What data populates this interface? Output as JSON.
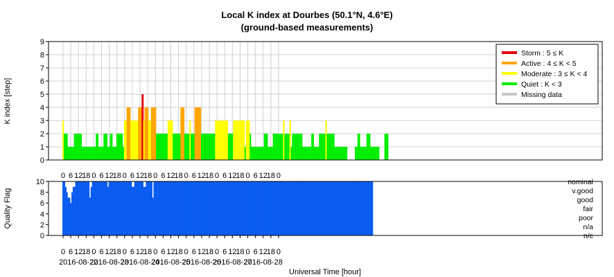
{
  "chart_data": [
    {
      "type": "bar",
      "title": "Local K index at Dourbes (50.1°N, 4.6°E)",
      "subtitle": "(ground-based measurements)",
      "ylabel": "K index [step]",
      "ylim": [
        0,
        9
      ],
      "yticks": [
        "0",
        "1",
        "2",
        "3",
        "4",
        "5",
        "6",
        "7",
        "8",
        "9"
      ],
      "grid": true,
      "x_interval_hours": 1,
      "legend": {
        "placement": "top-right",
        "entries": [
          {
            "label": "Storm : 5 ≤ K",
            "color": "#e8000b"
          },
          {
            "label": "Active : 4 ≤ K < 5",
            "color": "#ffa500"
          },
          {
            "label": "Moderate : 3 ≤ K < 4",
            "color": "#ffff00"
          },
          {
            "label": "Quiet : K < 3",
            "color": "#00ee00"
          },
          {
            "label": "Missing data",
            "color": "#c8c8c8"
          }
        ]
      },
      "values": [
        3,
        2,
        2,
        2,
        1,
        1,
        1,
        1,
        1,
        2,
        2,
        2,
        2,
        2,
        2,
        1,
        1,
        1,
        1,
        1,
        1,
        1,
        1,
        1,
        1,
        1,
        2,
        2,
        1,
        1,
        1,
        1,
        2,
        2,
        2,
        1,
        1,
        2,
        2,
        1,
        1,
        1,
        2,
        2,
        2,
        2,
        2,
        1,
        3,
        3,
        4,
        4,
        4,
        3,
        3,
        3,
        3,
        3,
        3,
        4,
        4,
        4,
        5,
        3,
        4,
        4,
        4,
        3,
        3,
        4,
        4,
        4,
        4,
        2,
        2,
        2,
        2,
        2,
        2,
        2,
        2,
        2,
        3,
        3,
        3,
        3,
        2,
        2,
        2,
        2,
        2,
        2,
        4,
        4,
        4,
        2,
        2,
        2,
        2,
        3,
        2,
        2,
        2,
        4,
        4,
        4,
        4,
        4,
        2,
        2,
        2,
        2,
        2,
        2,
        2,
        2,
        2,
        2,
        2,
        3,
        3,
        3,
        3,
        3,
        3,
        3,
        3,
        3,
        3,
        2,
        2,
        2,
        2,
        3,
        3,
        3,
        3,
        3,
        3,
        3,
        3,
        3,
        1,
        3,
        3,
        3,
        2,
        1,
        1,
        1,
        1,
        1,
        1,
        1,
        1,
        1,
        1,
        2,
        2,
        2,
        1,
        1,
        1,
        1,
        2,
        2,
        2,
        2,
        2,
        2,
        2,
        2,
        3,
        2,
        2,
        2,
        2,
        3,
        1,
        2,
        2,
        2,
        2,
        2,
        2,
        2,
        2,
        1,
        1,
        1,
        1,
        1,
        1,
        1,
        2,
        2,
        1,
        1,
        1,
        1,
        2,
        2,
        2,
        2,
        2,
        3,
        2,
        2,
        2,
        2,
        2,
        2,
        1,
        1,
        1,
        1,
        1,
        1,
        1,
        1,
        1,
        1,
        0,
        0,
        0,
        0,
        0,
        0,
        1,
        1,
        2,
        2,
        1,
        1,
        1,
        1,
        1,
        2,
        2,
        2,
        1,
        1,
        1,
        1,
        1,
        1,
        1,
        0,
        0,
        0,
        0,
        2,
        2,
        2
      ]
    },
    {
      "type": "area",
      "ylabel": "Quality Flag",
      "ylim": [
        0,
        10
      ],
      "yticks": [
        "0",
        "2",
        "4",
        "6",
        "8",
        "10"
      ],
      "quality_labels": [
        "nominal",
        "v.good",
        "good",
        "fair",
        "poor",
        "n/a",
        "n/c"
      ],
      "color": "#0a5cf0",
      "days": [
        "2016-08-22",
        "2016-08-23",
        "2016-08-24",
        "2016-08-25",
        "2016-08-26",
        "2016-08-27",
        "2016-08-28"
      ],
      "xlabel": "Universal Time [hour]",
      "hour_ticks": [
        "0",
        "6",
        "12",
        "18"
      ],
      "last_tick": "0",
      "values_note": "",
      "values": [
        10,
        10,
        9,
        8,
        7,
        7,
        6,
        8,
        9,
        9,
        10,
        10,
        10,
        10,
        10,
        10,
        10,
        10,
        10,
        10,
        10,
        7,
        9,
        10,
        10,
        10,
        10,
        10,
        10,
        10,
        10,
        10,
        10,
        10,
        10,
        9,
        10,
        10,
        10,
        10,
        10,
        10,
        10,
        10,
        10,
        10,
        10,
        10,
        10,
        10,
        10,
        10,
        10,
        10,
        9,
        9,
        10,
        10,
        10,
        10,
        10,
        10,
        10,
        9,
        9,
        10,
        10,
        10,
        10,
        10,
        7,
        10,
        10,
        10,
        10,
        10,
        10,
        10,
        10,
        10,
        10,
        10,
        10,
        10,
        10,
        10,
        10,
        10,
        10,
        10,
        10,
        10,
        10,
        10,
        10,
        10,
        10,
        10,
        10,
        10,
        10,
        10,
        10,
        10,
        10,
        10,
        10,
        10,
        10,
        10,
        10,
        10,
        10,
        10,
        10,
        10,
        10,
        10,
        10,
        10,
        10,
        10,
        10,
        10,
        10,
        10,
        10,
        10,
        10,
        10,
        10,
        10,
        10,
        10,
        10,
        10,
        10,
        10,
        10,
        10,
        10,
        10,
        10,
        10,
        10,
        10,
        10,
        10,
        10,
        10,
        10,
        10,
        10,
        10,
        10,
        10,
        10,
        10,
        10,
        10,
        10,
        10,
        10,
        10,
        10,
        10,
        10,
        10,
        10,
        10,
        10,
        10,
        10,
        10,
        10,
        10,
        10,
        10,
        10,
        10,
        10,
        10,
        10,
        10,
        10,
        10,
        10,
        10,
        10,
        10,
        10,
        10,
        10,
        10,
        10,
        10,
        10,
        10,
        10,
        10,
        10,
        10,
        10,
        10,
        10,
        10,
        10,
        10,
        10,
        10,
        10,
        10,
        10,
        10,
        10,
        10,
        10,
        10,
        10,
        10,
        10,
        10,
        10,
        10,
        10,
        10,
        10,
        10,
        10,
        10,
        10,
        10,
        10,
        10,
        10,
        10,
        10,
        10,
        10,
        10,
        10,
        10
      ]
    }
  ]
}
